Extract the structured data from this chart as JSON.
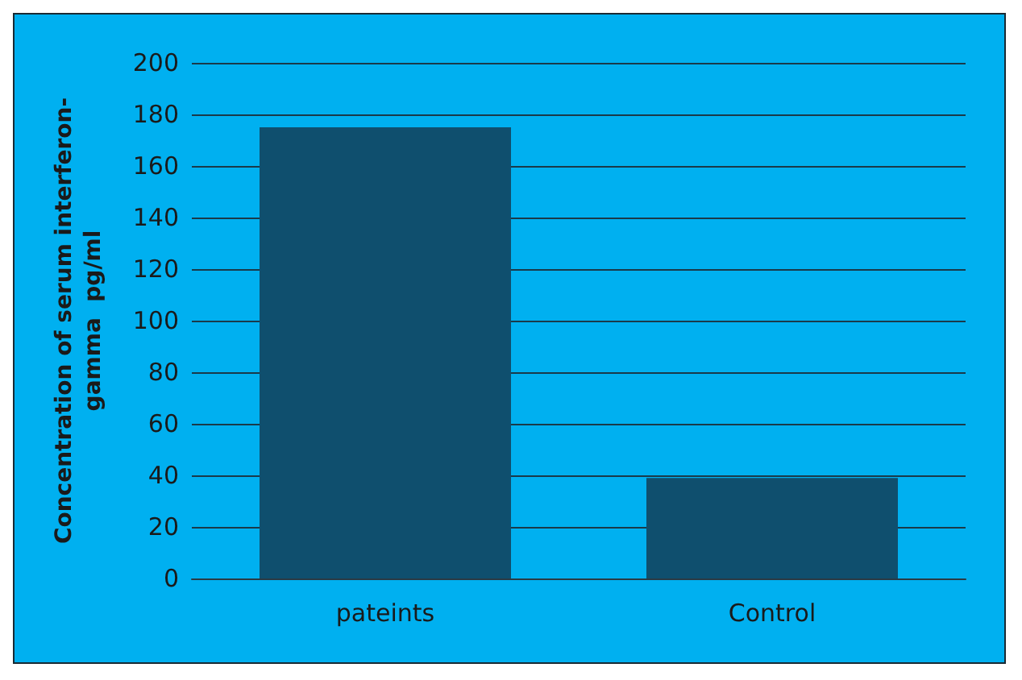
{
  "chart_data": {
    "type": "bar",
    "ylabel": "Concentration of serum interferon-gamma  pg/ml",
    "categories": [
      "pateints",
      "Control"
    ],
    "values": [
      175,
      39
    ],
    "color": "#0f4f6e",
    "ylim": [
      0,
      200
    ],
    "yticks": [
      0,
      20,
      40,
      60,
      80,
      100,
      120,
      140,
      160,
      180,
      200
    ],
    "grid": "y"
  }
}
